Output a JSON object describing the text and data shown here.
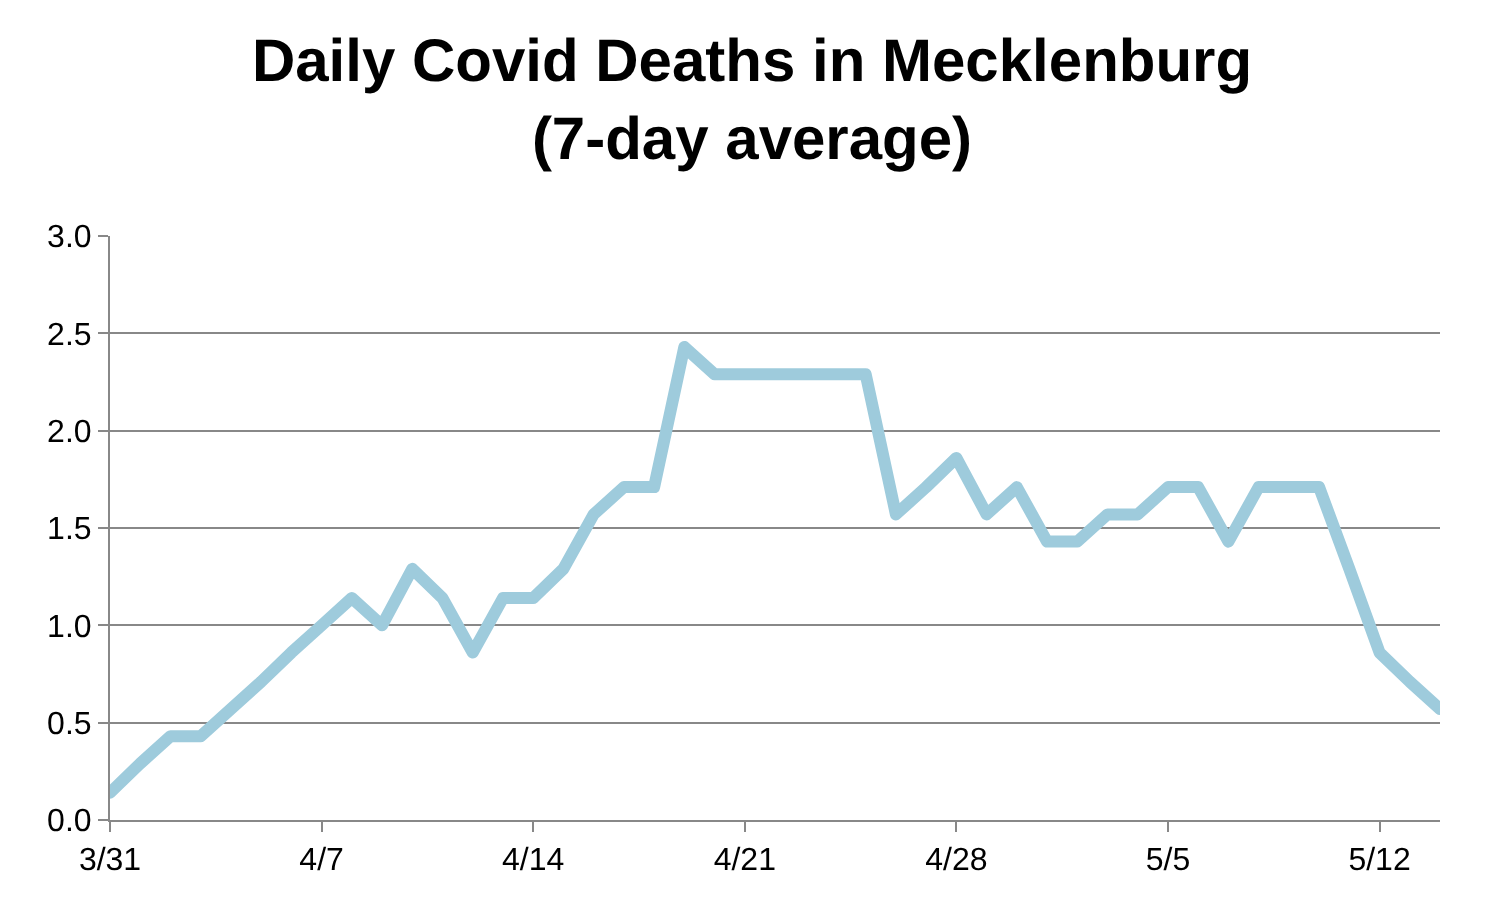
{
  "chart_data": {
    "type": "line",
    "title": "Daily Covid Deaths in Mecklenburg\n(7-day average)",
    "x": [
      "--03-31",
      "--04-01",
      "--04-02",
      "--04-03",
      "--04-04",
      "--04-05",
      "--04-06",
      "--04-07",
      "--04-08",
      "--04-09",
      "--04-10",
      "--04-11",
      "--04-12",
      "--04-13",
      "--04-14",
      "--04-15",
      "--04-16",
      "--04-17",
      "--04-18",
      "--04-19",
      "--04-20",
      "--04-21",
      "--04-22",
      "--04-23",
      "--04-24",
      "--04-25",
      "--04-26",
      "--04-27",
      "--04-28",
      "--04-29",
      "--04-30",
      "--05-01",
      "--05-02",
      "--05-03",
      "--05-04",
      "--05-05",
      "--05-06",
      "--05-07",
      "--05-08",
      "--05-09",
      "--05-10",
      "--05-11",
      "--05-12",
      "--05-13",
      "--05-14"
    ],
    "series": [
      {
        "color": "#9ecbdc",
        "values": [
          0.14,
          0.29,
          0.43,
          0.43,
          0.57,
          0.71,
          0.86,
          1.0,
          1.14,
          1.0,
          1.29,
          1.14,
          0.86,
          1.14,
          1.14,
          1.29,
          1.57,
          1.71,
          1.71,
          2.43,
          2.29,
          2.29,
          2.29,
          2.29,
          2.29,
          2.29,
          1.57,
          1.71,
          1.86,
          1.57,
          1.71,
          1.43,
          1.43,
          1.57,
          1.57,
          1.71,
          1.71,
          1.43,
          1.71,
          1.71,
          1.71,
          1.29,
          0.86,
          0.71,
          0.57
        ]
      }
    ],
    "xlim": [
      "--03-31",
      "--05-14"
    ],
    "xticks": [
      {
        "value": "--03-31",
        "label": "3/31"
      },
      {
        "value": "--04-07",
        "label": "4/7"
      },
      {
        "value": "--04-14",
        "label": "4/14"
      },
      {
        "value": "--04-21",
        "label": "4/21"
      },
      {
        "value": "--04-28",
        "label": "4/28"
      },
      {
        "value": "--05-05",
        "label": "5/5"
      },
      {
        "value": "--05-12",
        "label": "5/12"
      }
    ],
    "ylim": [
      0,
      3
    ],
    "yticks": [
      {
        "value": 0,
        "label": "0.0"
      },
      {
        "value": 0.5,
        "label": "0.5"
      },
      {
        "value": 1,
        "label": "1.0"
      },
      {
        "value": 1.5,
        "label": "1.5"
      },
      {
        "value": 2,
        "label": "2.0"
      },
      {
        "value": 2.5,
        "label": "2.5"
      },
      {
        "value": 3,
        "label": "3.0"
      }
    ],
    "grid": "y",
    "line_style": "solid",
    "marker": "none"
  }
}
